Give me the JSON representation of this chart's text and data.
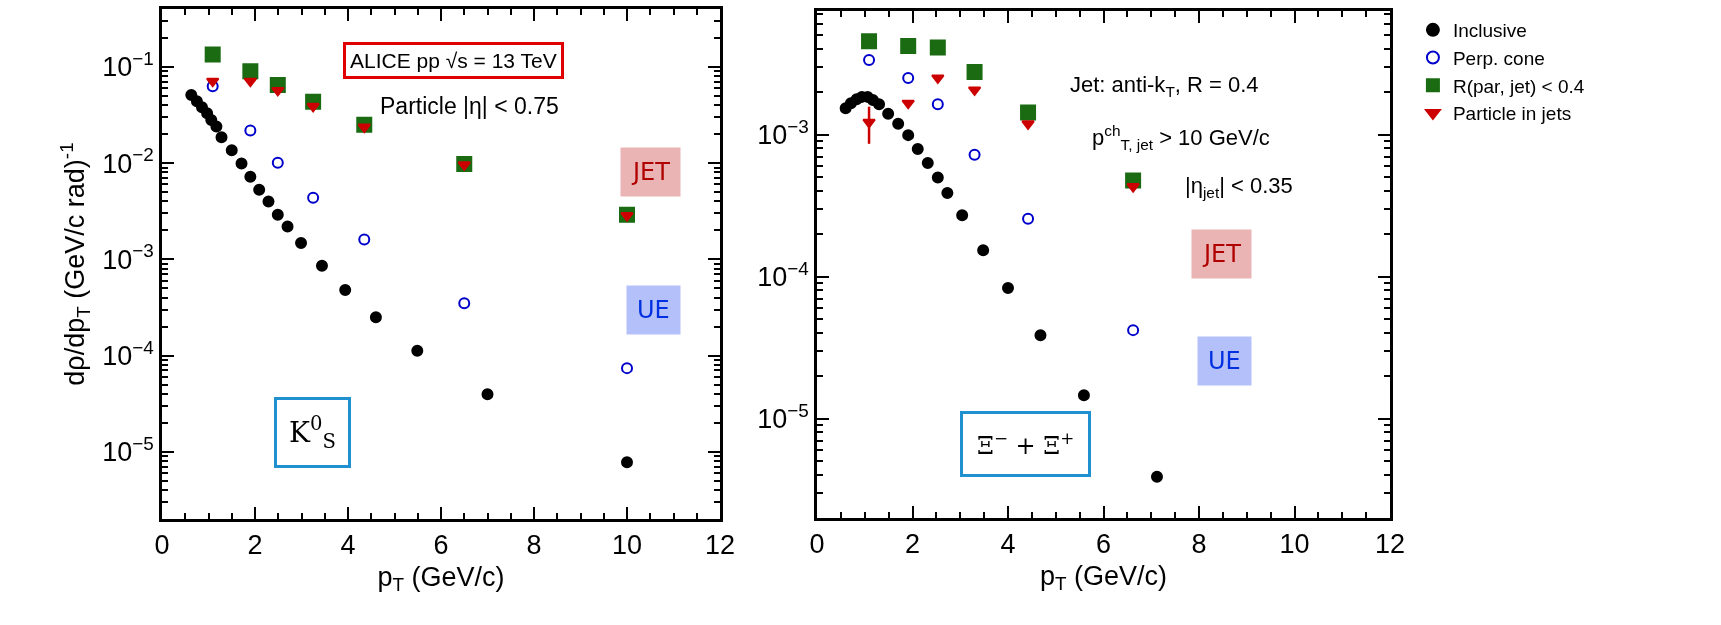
{
  "chart_data": [
    {
      "type": "scatter",
      "xlabel": "p$_{T}$ (GeV/c)",
      "ylabel": "dρ/dp$_{T}$ (GeV/c rad)$^{-1}$",
      "log": "y",
      "legend": false,
      "xlim": [
        0,
        12
      ],
      "xticks": [
        0,
        2,
        4,
        6,
        8,
        10,
        12
      ],
      "ylim": [
        2e-06,
        0.4
      ],
      "yticks": [
        {
          "value": 0.1,
          "label": "10$^{−1}$"
        },
        {
          "value": 0.01,
          "label": "10$^{−2}$"
        },
        {
          "value": 0.001,
          "label": "10$^{−3}$"
        },
        {
          "value": 0.0001,
          "label": "10$^{−4}$"
        },
        {
          "value": 1e-05,
          "label": "10$^{−5}$"
        }
      ],
      "annotations": [
        "ALICE pp √s = 13 TeV",
        "Particle |η| < 0.75",
        "JET",
        "UE",
        "K$^{0}$$_{S}$"
      ],
      "series": [
        {
          "color": "#000000",
          "marker": "circle",
          "x": [
            0.63,
            0.75,
            0.86,
            0.97,
            1.06,
            1.17,
            1.28,
            1.5,
            1.71,
            1.9,
            2.09,
            2.29,
            2.49,
            2.7,
            2.99,
            3.44,
            3.94,
            4.6,
            5.49,
            7.0,
            10.0
          ],
          "values": [
            0.051,
            0.044,
            0.038,
            0.033,
            0.028,
            0.024,
            0.0186,
            0.0136,
            0.0099,
            0.0072,
            0.0053,
            0.004,
            0.0029,
            0.0022,
            0.00148,
            0.00086,
            0.00048,
            0.00025,
            0.000112,
            3.96e-05,
            7.8e-06
          ]
        },
        {
          "color": "#0000cc",
          "marker": "circle",
          "x": [
            1.09,
            1.9,
            2.49,
            3.25,
            4.35,
            6.5,
            10.0
          ],
          "values": [
            0.063,
            0.0218,
            0.0101,
            0.00436,
            0.00161,
            0.00035,
            7.4e-05
          ]
        },
        {
          "color": "#1a6b12",
          "marker": "square",
          "x": [
            1.09,
            1.9,
            2.49,
            3.25,
            4.35,
            6.5,
            10.0
          ],
          "values": [
            0.135,
            0.09,
            0.065,
            0.0435,
            0.025,
            0.0098,
            0.0029
          ]
        },
        {
          "color": "#cc0000",
          "marker": "triangle",
          "x": [
            1.09,
            1.9,
            2.49,
            3.25,
            4.35,
            6.5,
            10.0
          ],
          "values": [
            0.071,
            0.071,
            0.057,
            0.039,
            0.0237,
            0.0096,
            0.00285
          ]
        }
      ]
    },
    {
      "type": "scatter",
      "xlabel": "p$_{T}$ (GeV/c)",
      "log": "y",
      "legend": "right",
      "xlim": [
        0,
        12
      ],
      "xticks": [
        0,
        2,
        4,
        6,
        8,
        10,
        12
      ],
      "ylim": [
        2e-06,
        0.0074
      ],
      "yticks": [
        {
          "value": 0.001,
          "label": "10$^{−3}$"
        },
        {
          "value": 0.0001,
          "label": "10$^{−4}$"
        },
        {
          "value": 1e-05,
          "label": "10$^{−5}$"
        }
      ],
      "annotations": [
        "Jet: anti-k$_{T}$, R = 0.4",
        "p$^{ch}$$_{T, jet}$ > 10 GeV/c",
        "|η$_{jet}$| < 0.35",
        "JET",
        "UE",
        "Ξ$^{−}$ + Ξ̄$^{+}$"
      ],
      "series": [
        {
          "name": "Inclusive",
          "color": "#000000",
          "marker": "circle",
          "x": [
            0.6,
            0.71,
            0.83,
            0.94,
            1.06,
            1.17,
            1.3,
            1.49,
            1.7,
            1.91,
            2.11,
            2.32,
            2.53,
            2.73,
            3.04,
            3.48,
            4.0,
            4.68,
            5.59,
            7.12
          ],
          "values": [
            0.00153,
            0.00166,
            0.00177,
            0.00184,
            0.00184,
            0.00175,
            0.00163,
            0.0014,
            0.00119,
            0.00099,
            0.00079,
            0.00063,
            0.000499,
            0.000387,
            0.00027,
            0.000153,
            8.3e-05,
            3.87e-05,
            1.46e-05,
            3.9e-06
          ]
        },
        {
          "name": "Perp. cone",
          "color": "#0000cc",
          "marker": "circle",
          "x": [
            1.09,
            1.91,
            2.53,
            3.3,
            4.42,
            6.62
          ],
          "values": [
            0.00335,
            0.0025,
            0.00163,
            0.00072,
            0.000255,
            4.2e-05
          ]
        },
        {
          "name": "R(par, jet) < 0.4",
          "color": "#1a6b12",
          "marker": "square",
          "x": [
            1.09,
            1.91,
            2.53,
            3.3,
            4.42,
            6.62
          ],
          "values": [
            0.00454,
            0.0042,
            0.0041,
            0.00275,
            0.00143,
            0.000474
          ]
        },
        {
          "name": "Particle in jets",
          "color": "#cc0000",
          "marker": "triangle",
          "x": [
            1.09,
            1.91,
            2.53,
            3.3,
            4.42,
            6.62
          ],
          "values": [
            0.00122,
            0.00166,
            0.0025,
            0.00206,
            0.00119,
            0.00043
          ],
          "errors": [
            [
              0.00086,
              0.00157
            ],
            null,
            null,
            null,
            null,
            null
          ]
        }
      ]
    }
  ]
}
